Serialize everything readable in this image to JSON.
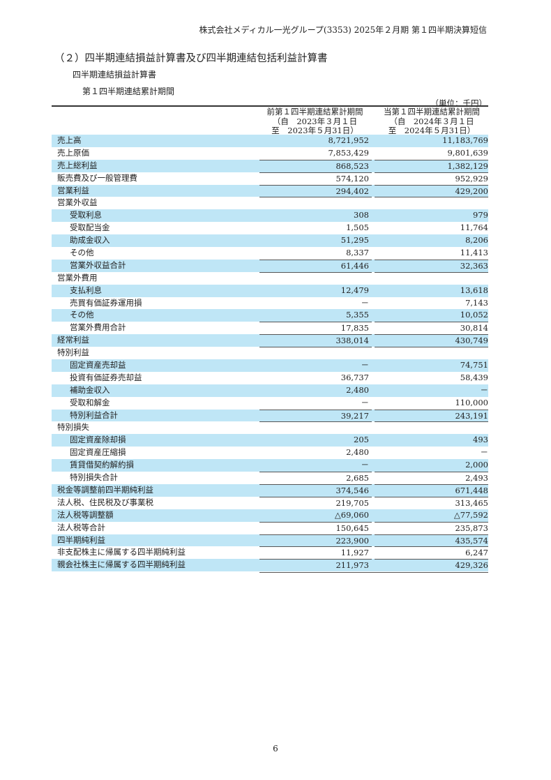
{
  "header": "株式会社メディカル一光グループ(3353) 2025年２月期 第１四半期決算短信",
  "section_title": "（２）四半期連結損益計算書及び四半期連結包括利益計算書",
  "subtitle": "四半期連結損益計算書",
  "period_title": "第１四半期連結累計期間",
  "unit": "（単位：千円）",
  "columns": [
    {
      "line1": "前第１四半期連結累計期間",
      "line2": "（自　2023年３月１日",
      "line3": "至　2023年５月31日）"
    },
    {
      "line1": "当第１四半期連結累計期間",
      "line2": "（自　2024年３月１日",
      "line3": "至　2024年５月31日）"
    }
  ],
  "rows": [
    {
      "label": "売上高",
      "prev": "8,721,952",
      "curr": "11,183,769",
      "indent": false
    },
    {
      "label": "売上原価",
      "prev": "7,853,429",
      "curr": "9,801,639",
      "indent": false
    },
    {
      "label": "売上総利益",
      "prev": "868,523",
      "curr": "1,382,129",
      "indent": false
    },
    {
      "label": "販売費及び一般管理費",
      "prev": "574,120",
      "curr": "952,929",
      "indent": false
    },
    {
      "label": "営業利益",
      "prev": "294,402",
      "curr": "429,200",
      "indent": false
    },
    {
      "label": "営業外収益",
      "prev": "",
      "curr": "",
      "indent": false
    },
    {
      "label": "受取利息",
      "prev": "308",
      "curr": "979",
      "indent": true
    },
    {
      "label": "受取配当金",
      "prev": "1,505",
      "curr": "11,764",
      "indent": true
    },
    {
      "label": "助成金収入",
      "prev": "51,295",
      "curr": "8,206",
      "indent": true
    },
    {
      "label": "その他",
      "prev": "8,337",
      "curr": "11,413",
      "indent": true
    },
    {
      "label": "営業外収益合計",
      "prev": "61,446",
      "curr": "32,363",
      "indent": true
    },
    {
      "label": "営業外費用",
      "prev": "",
      "curr": "",
      "indent": false
    },
    {
      "label": "支払利息",
      "prev": "12,479",
      "curr": "13,618",
      "indent": true
    },
    {
      "label": "売買有価証券運用損",
      "prev": "－",
      "curr": "7,143",
      "indent": true
    },
    {
      "label": "その他",
      "prev": "5,355",
      "curr": "10,052",
      "indent": true
    },
    {
      "label": "営業外費用合計",
      "prev": "17,835",
      "curr": "30,814",
      "indent": true
    },
    {
      "label": "経常利益",
      "prev": "338,014",
      "curr": "430,749",
      "indent": false
    },
    {
      "label": "特別利益",
      "prev": "",
      "curr": "",
      "indent": false
    },
    {
      "label": "固定資産売却益",
      "prev": "－",
      "curr": "74,751",
      "indent": true
    },
    {
      "label": "投資有価証券売却益",
      "prev": "36,737",
      "curr": "58,439",
      "indent": true
    },
    {
      "label": "補助金収入",
      "prev": "2,480",
      "curr": "－",
      "indent": true
    },
    {
      "label": "受取和解金",
      "prev": "－",
      "curr": "110,000",
      "indent": true
    },
    {
      "label": "特別利益合計",
      "prev": "39,217",
      "curr": "243,191",
      "indent": true
    },
    {
      "label": "特別損失",
      "prev": "",
      "curr": "",
      "indent": false
    },
    {
      "label": "固定資産除却損",
      "prev": "205",
      "curr": "493",
      "indent": true
    },
    {
      "label": "固定資産圧縮損",
      "prev": "2,480",
      "curr": "－",
      "indent": true
    },
    {
      "label": "賃貸借契約解約損",
      "prev": "－",
      "curr": "2,000",
      "indent": true
    },
    {
      "label": "特別損失合計",
      "prev": "2,685",
      "curr": "2,493",
      "indent": true
    },
    {
      "label": "税金等調整前四半期純利益",
      "prev": "374,546",
      "curr": "671,448",
      "indent": false
    },
    {
      "label": "法人税、住民税及び事業税",
      "prev": "219,705",
      "curr": "313,465",
      "indent": false
    },
    {
      "label": "法人税等調整額",
      "prev": "△69,060",
      "curr": "△77,592",
      "indent": false
    },
    {
      "label": "法人税等合計",
      "prev": "150,645",
      "curr": "235,873",
      "indent": false
    },
    {
      "label": "四半期純利益",
      "prev": "223,900",
      "curr": "435,574",
      "indent": false
    },
    {
      "label": "非支配株主に帰属する四半期純利益",
      "prev": "11,927",
      "curr": "6,247",
      "indent": false
    },
    {
      "label": "親会社株主に帰属する四半期純利益",
      "prev": "211,973",
      "curr": "429,326",
      "indent": false
    }
  ],
  "row_highlight_color": "#bfe6f6",
  "page_number": "6"
}
